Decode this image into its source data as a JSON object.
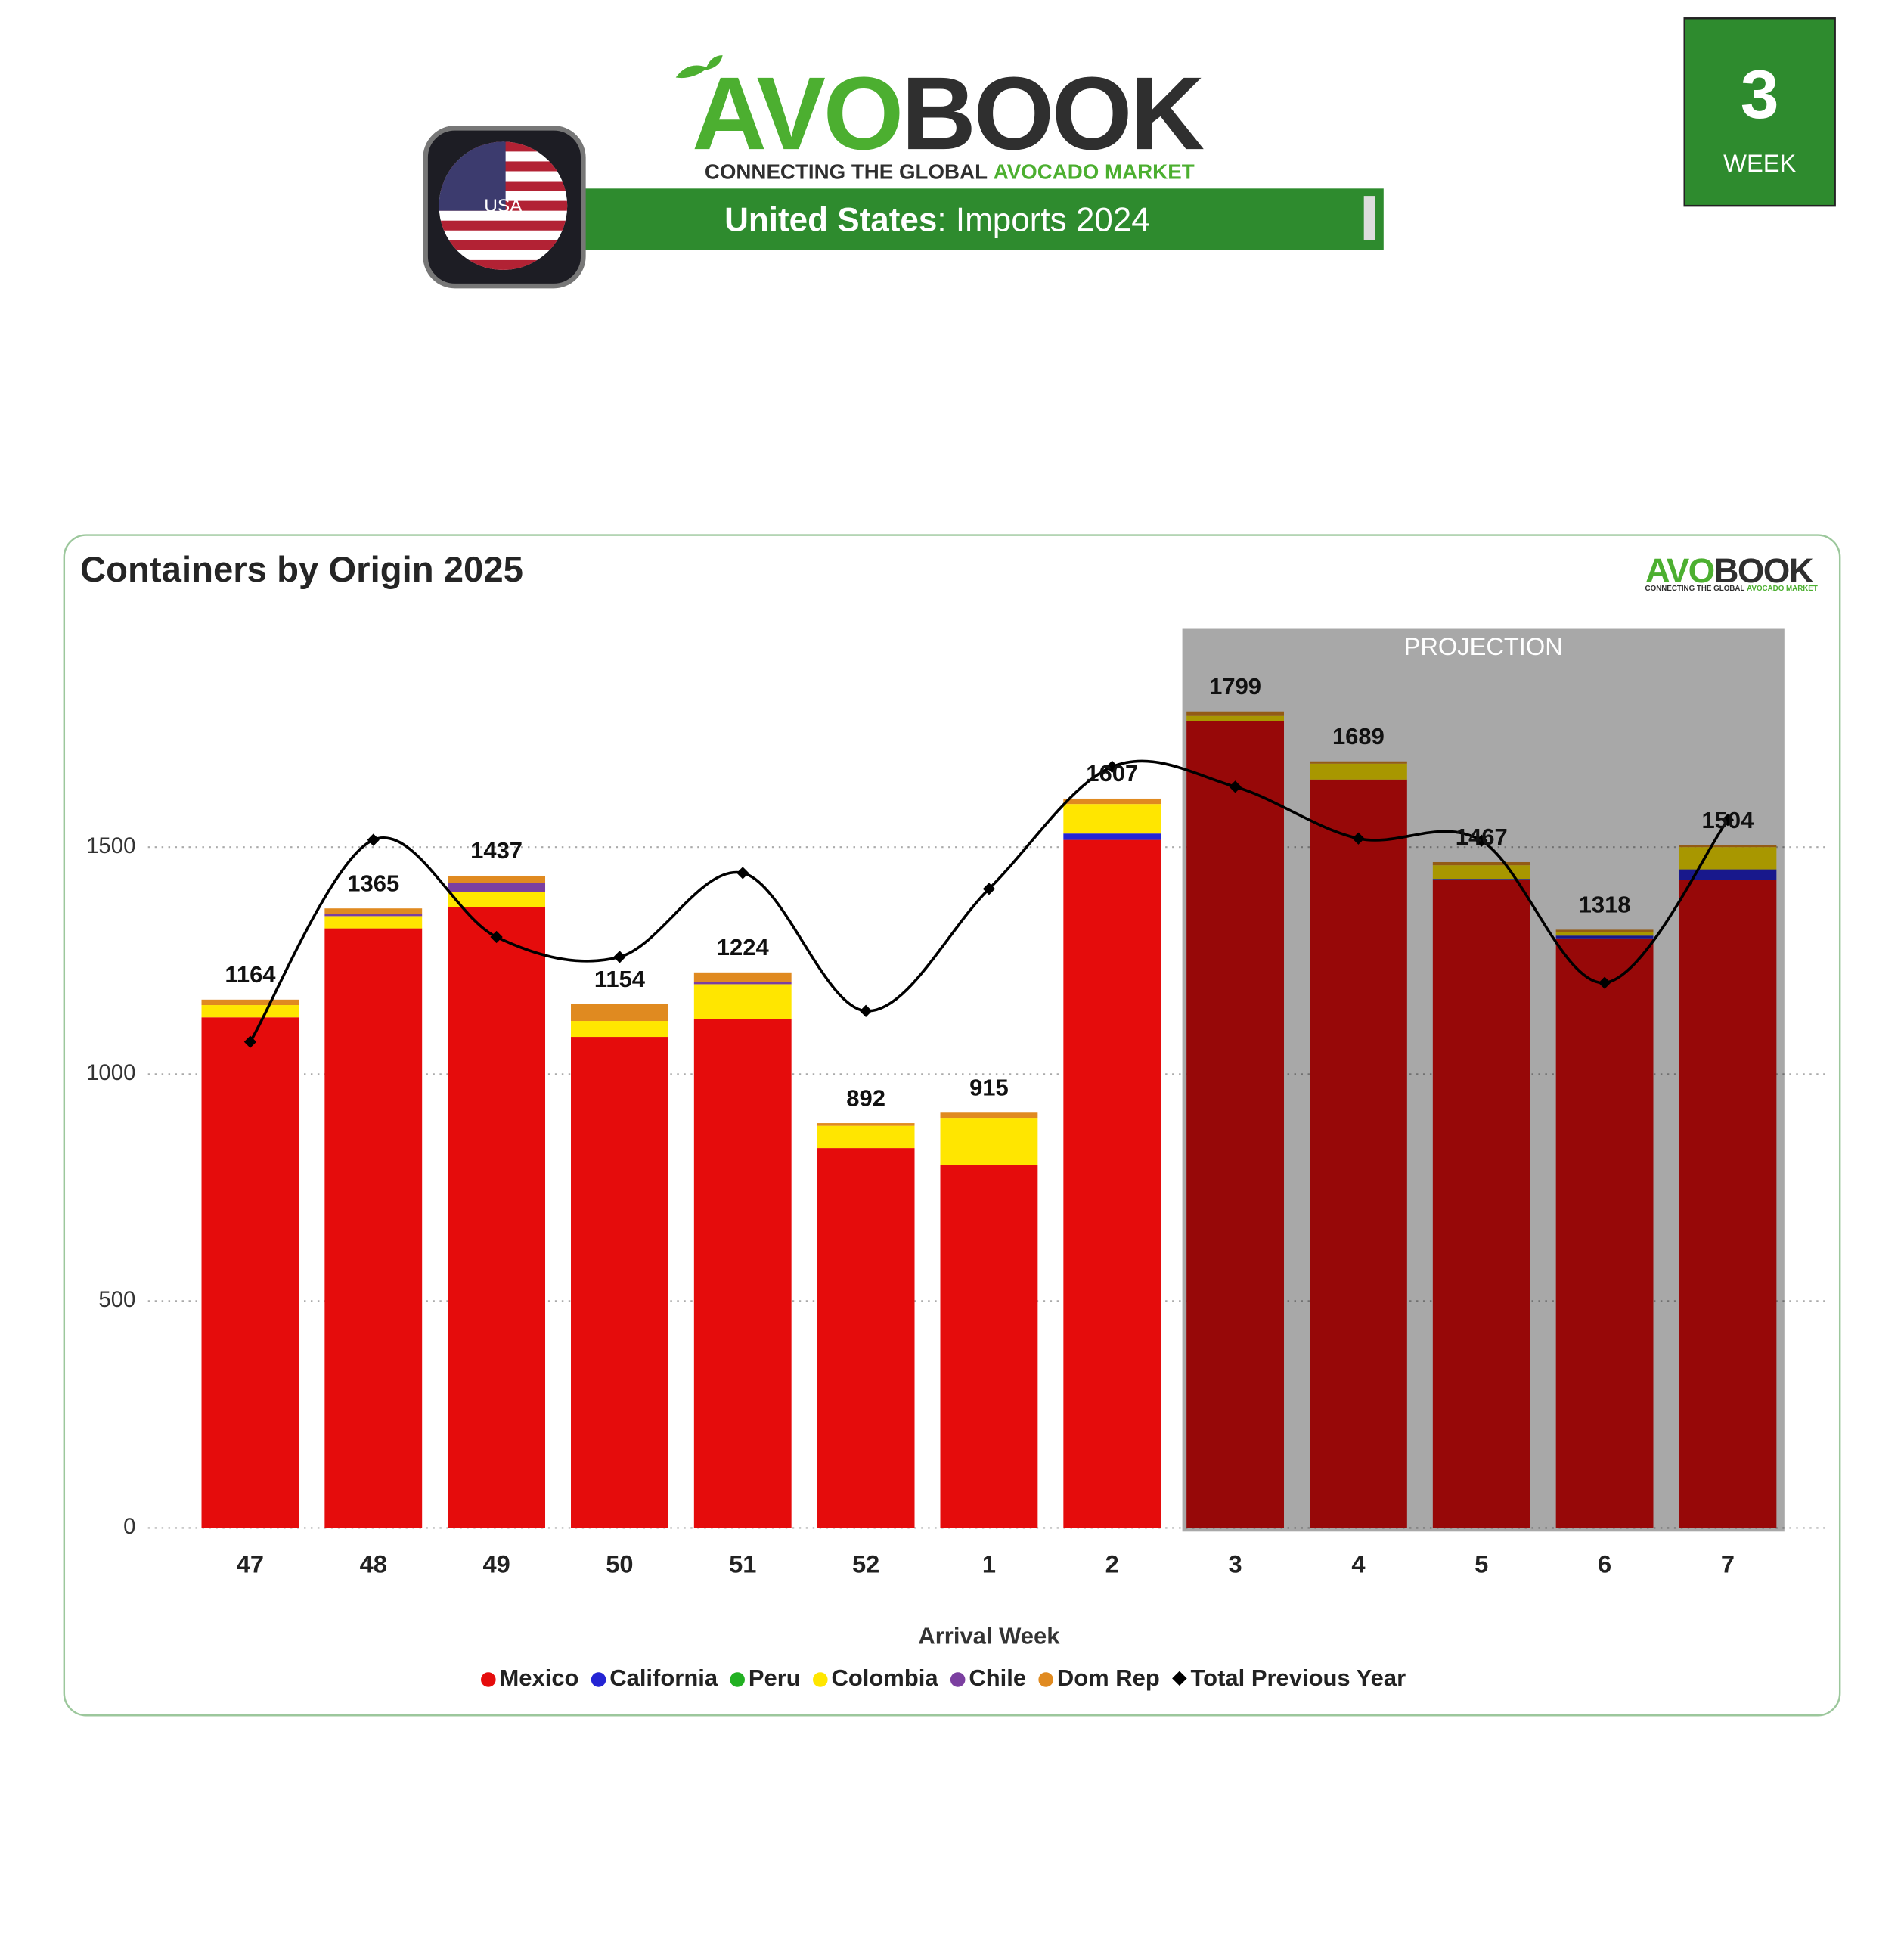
{
  "header": {
    "logo_avo": "AVO",
    "logo_book": "BOOK",
    "tagline_a": "CONNECTING THE GLOBAL",
    "tagline_b": "AVOCADO MARKET",
    "flag_label": "USA",
    "banner_country": "United States",
    "banner_rest": ": Imports 2024",
    "week_number": "3",
    "week_label": "WEEK"
  },
  "chart_data": {
    "type": "bar",
    "stacked": true,
    "title": "Containers by Origin 2025",
    "x_label": "Arrival Week",
    "categories": [
      "47",
      "48",
      "49",
      "50",
      "51",
      "52",
      "1",
      "2",
      "3",
      "4",
      "5",
      "6",
      "7"
    ],
    "series": [
      {
        "name": "Mexico",
        "color": "#e50c0c",
        "values": [
          1125,
          1321,
          1367,
          1082,
          1122,
          837,
          799,
          1516,
          1777,
          1649,
          1427,
          1299,
          1427
        ]
      },
      {
        "name": "California",
        "color": "#2424d4",
        "values": [
          0,
          0,
          0,
          0,
          0,
          0,
          0,
          14,
          0,
          0,
          3,
          6,
          24
        ]
      },
      {
        "name": "Peru",
        "color": "#22b022",
        "values": [
          0,
          0,
          0,
          0,
          0,
          0,
          0,
          0,
          0,
          0,
          0,
          0,
          0
        ]
      },
      {
        "name": "Colombia",
        "color": "#ffe600",
        "values": [
          27,
          27,
          35,
          35,
          76,
          49,
          103,
          65,
          12,
          35,
          30,
          8,
          49
        ]
      },
      {
        "name": "Chile",
        "color": "#7b3fa0",
        "values": [
          0,
          5,
          19,
          0,
          5,
          0,
          0,
          0,
          0,
          0,
          0,
          0,
          0
        ]
      },
      {
        "name": "Dom Rep",
        "color": "#e08a20",
        "values": [
          12,
          12,
          16,
          37,
          21,
          6,
          13,
          12,
          10,
          5,
          7,
          5,
          4
        ]
      },
      {
        "name": "Total Previous Year",
        "type": "line",
        "color": "#000000",
        "values": [
          1071,
          1516,
          1302,
          1258,
          1443,
          1139,
          1408,
          1677,
          1633,
          1519,
          1514,
          1201,
          1560
        ]
      }
    ],
    "totals": [
      1164,
      1365,
      1437,
      1154,
      1224,
      892,
      915,
      1607,
      1799,
      1689,
      1467,
      1318,
      1504
    ],
    "ylim": [
      0,
      2000
    ],
    "yticks": [
      0,
      500,
      1000,
      1500
    ],
    "grid": true,
    "projection": {
      "label": "PROJECTION",
      "from": "3",
      "to": "7"
    }
  }
}
